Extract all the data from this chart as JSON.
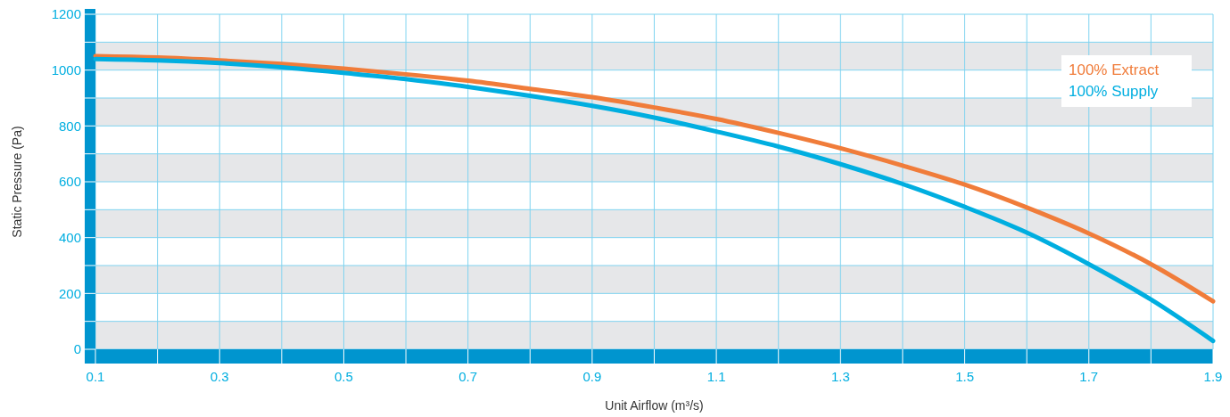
{
  "chart_data": {
    "type": "line",
    "xlabel": "Unit Airflow (m³/s)",
    "ylabel": "Static Pressure (Pa)",
    "x": [
      0.1,
      0.2,
      0.3,
      0.4,
      0.5,
      0.6,
      0.7,
      0.8,
      0.9,
      1.0,
      1.1,
      1.2,
      1.3,
      1.4,
      1.5,
      1.6,
      1.7,
      1.8,
      1.9
    ],
    "series": [
      {
        "name": "100% Extract",
        "color": "#f07c3a",
        "values": [
          1050,
          1045,
          1035,
          1022,
          1005,
          985,
          962,
          933,
          903,
          866,
          825,
          775,
          720,
          658,
          590,
          508,
          415,
          305,
          172
        ]
      },
      {
        "name": "100% Supply",
        "color": "#00aee0",
        "values": [
          1040,
          1035,
          1025,
          1010,
          990,
          968,
          940,
          908,
          872,
          830,
          780,
          726,
          663,
          592,
          510,
          418,
          305,
          178,
          30
        ]
      }
    ],
    "xlim": [
      0.1,
      1.9
    ],
    "xticks": [
      0.1,
      {
        "value": 0.2,
        "label": null
      },
      0.3,
      {
        "value": 0.4,
        "label": null
      },
      0.5,
      {
        "value": 0.6,
        "label": null
      },
      0.7,
      {
        "value": 0.8,
        "label": null
      },
      0.9,
      {
        "value": 1.0,
        "label": null
      },
      1.1,
      {
        "value": 1.2,
        "label": null
      },
      1.3,
      {
        "value": 1.4,
        "label": null
      },
      1.5,
      {
        "value": 1.6,
        "label": null
      },
      1.7,
      {
        "value": 1.8,
        "label": null
      },
      1.9
    ],
    "ylim": [
      0,
      1200
    ],
    "yticks": [
      0,
      {
        "value": 100,
        "label": null
      },
      200,
      {
        "value": 300,
        "label": null
      },
      400,
      {
        "value": 500,
        "label": null
      },
      600,
      {
        "value": 700,
        "label": null
      },
      800,
      {
        "value": 900,
        "label": null
      },
      1000,
      {
        "value": 1100,
        "label": null
      },
      1200
    ],
    "grid": true,
    "legend": "top right",
    "line_style": "solid",
    "marker": "none"
  }
}
